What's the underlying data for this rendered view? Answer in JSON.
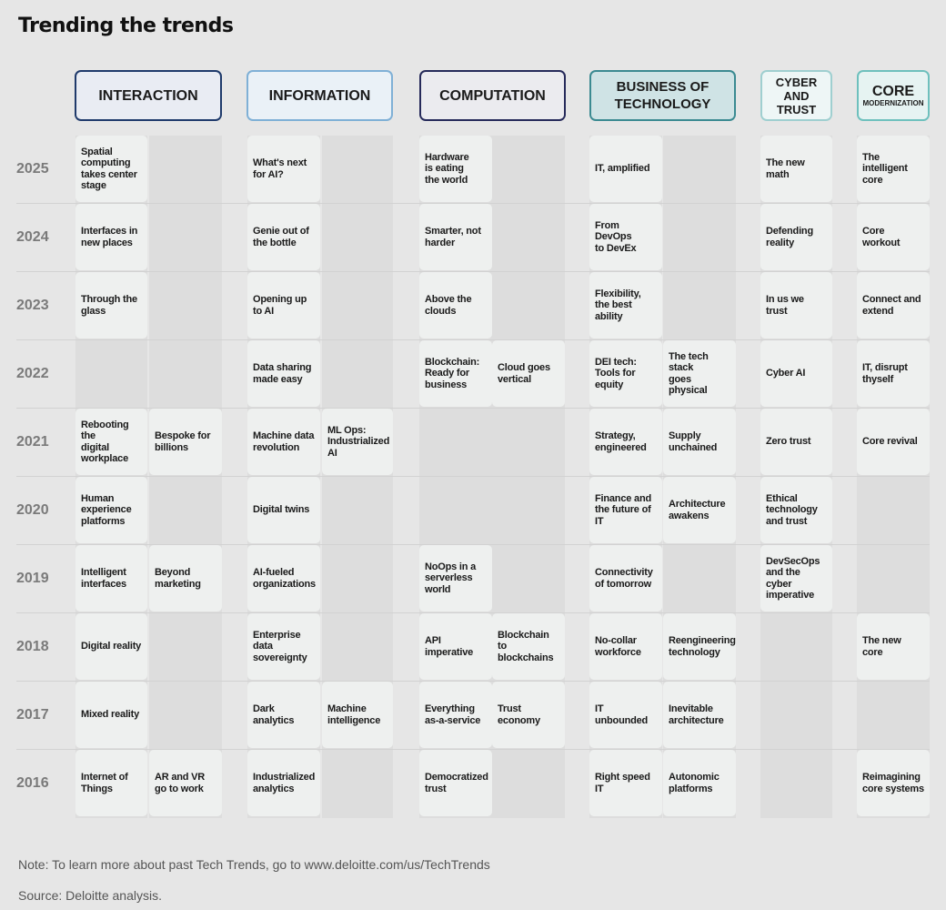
{
  "title": "Trending the trends",
  "headers": [
    {
      "label": "INTERACTION",
      "border": "#1f3a6b",
      "fill": "#e9ecf3"
    },
    {
      "label": "INFORMATION",
      "border": "#7fb0d6",
      "fill": "#eaf1f7"
    },
    {
      "label": "COMPUTATION",
      "border": "#262a5a",
      "fill": "#ebebef"
    },
    {
      "label": "BUSINESS OF TECHNOLOGY",
      "border": "#3b8a91",
      "fill": "#cfe3e5"
    },
    {
      "label": "CYBER AND TRUST",
      "border": "#9fcfd0",
      "fill": "#eef6f6"
    },
    {
      "label": "CORE",
      "sub": "MODERNIZATION",
      "border": "#6ec0bd",
      "fill": "#e6f3f2"
    }
  ],
  "years": [
    "2025",
    "2024",
    "2023",
    "2022",
    "2021",
    "2020",
    "2019",
    "2018",
    "2017",
    "2016"
  ],
  "cells": {
    "2025": {
      "c0": "Spatial\ncomputing\ntakes center\nstage",
      "c2": "What's next\nfor AI?",
      "c4": "Hardware\nis eating\nthe world",
      "c6": "IT, amplified",
      "c8": "The new math",
      "c9": "The intelligent\ncore"
    },
    "2024": {
      "c0": "Interfaces in\nnew places",
      "c2": "Genie out of\nthe bottle",
      "c4": "Smarter, not\nharder",
      "c6": "From DevOps\nto DevEx",
      "c8": "Defending\nreality",
      "c9": "Core workout"
    },
    "2023": {
      "c0": "Through the\nglass",
      "c2": "Opening up\nto AI",
      "c4": "Above the\nclouds",
      "c6": "Flexibility,\nthe best ability",
      "c8": "In us we trust",
      "c9": "Connect and\nextend"
    },
    "2022": {
      "c2": "Data sharing\nmade easy",
      "c4": "Blockchain:\nReady for\nbusiness",
      "c5": "Cloud goes\nvertical",
      "c6": "DEI tech:\nTools for\nequity",
      "c7": "The tech stack\ngoes physical",
      "c8": "Cyber AI",
      "c9": "IT, disrupt\nthyself"
    },
    "2021": {
      "c0": "Rebooting the\ndigital\nworkplace",
      "c1": "Bespoke for\nbillions",
      "c2": "Machine data\nrevolution",
      "c3": "ML Ops:\nIndustrialized\nAI",
      "c6": "Strategy,\nengineered",
      "c7": "Supply\nunchained",
      "c8": "Zero trust",
      "c9": "Core revival"
    },
    "2020": {
      "c0": "Human\nexperience\nplatforms",
      "c2": "Digital twins",
      "c6": "Finance and\nthe future of\nIT",
      "c7": "Architecture\nawakens",
      "c8": "Ethical\ntechnology\nand trust"
    },
    "2019": {
      "c0": "Intelligent\ninterfaces",
      "c1": "Beyond\nmarketing",
      "c2": "AI-fueled\norganizations",
      "c4": "NoOps in a\nserverless\nworld",
      "c6": "Connectivity\nof tomorrow",
      "c8": "DevSecOps\nand the cyber\nimperative"
    },
    "2018": {
      "c0": "Digital reality",
      "c2": "Enterprise\ndata\nsovereignty",
      "c4": "API\nimperative",
      "c5": "Blockchain to\nblockchains",
      "c6": "No-collar\nworkforce",
      "c7": "Reengineering\ntechnology",
      "c9": "The new\ncore"
    },
    "2017": {
      "c0": "Mixed reality",
      "c2": "Dark analytics",
      "c3": "Machine\nintelligence",
      "c4": "Everything\nas-a-service",
      "c5": "Trust economy",
      "c6": "IT\nunbounded",
      "c7": "Inevitable\narchitecture"
    },
    "2016": {
      "c0": "Internet of\nThings",
      "c1": "AR and VR\ngo to work",
      "c2": "Industrialized\nanalytics",
      "c4": "Democratized\ntrust",
      "c6": "Right speed IT",
      "c7": "Autonomic\nplatforms",
      "c9": "Reimagining\ncore systems"
    }
  },
  "note": "Note: To learn more about past Tech Trends, go to www.deloitte.com/us/TechTrends",
  "source": "Source: Deloitte analysis."
}
